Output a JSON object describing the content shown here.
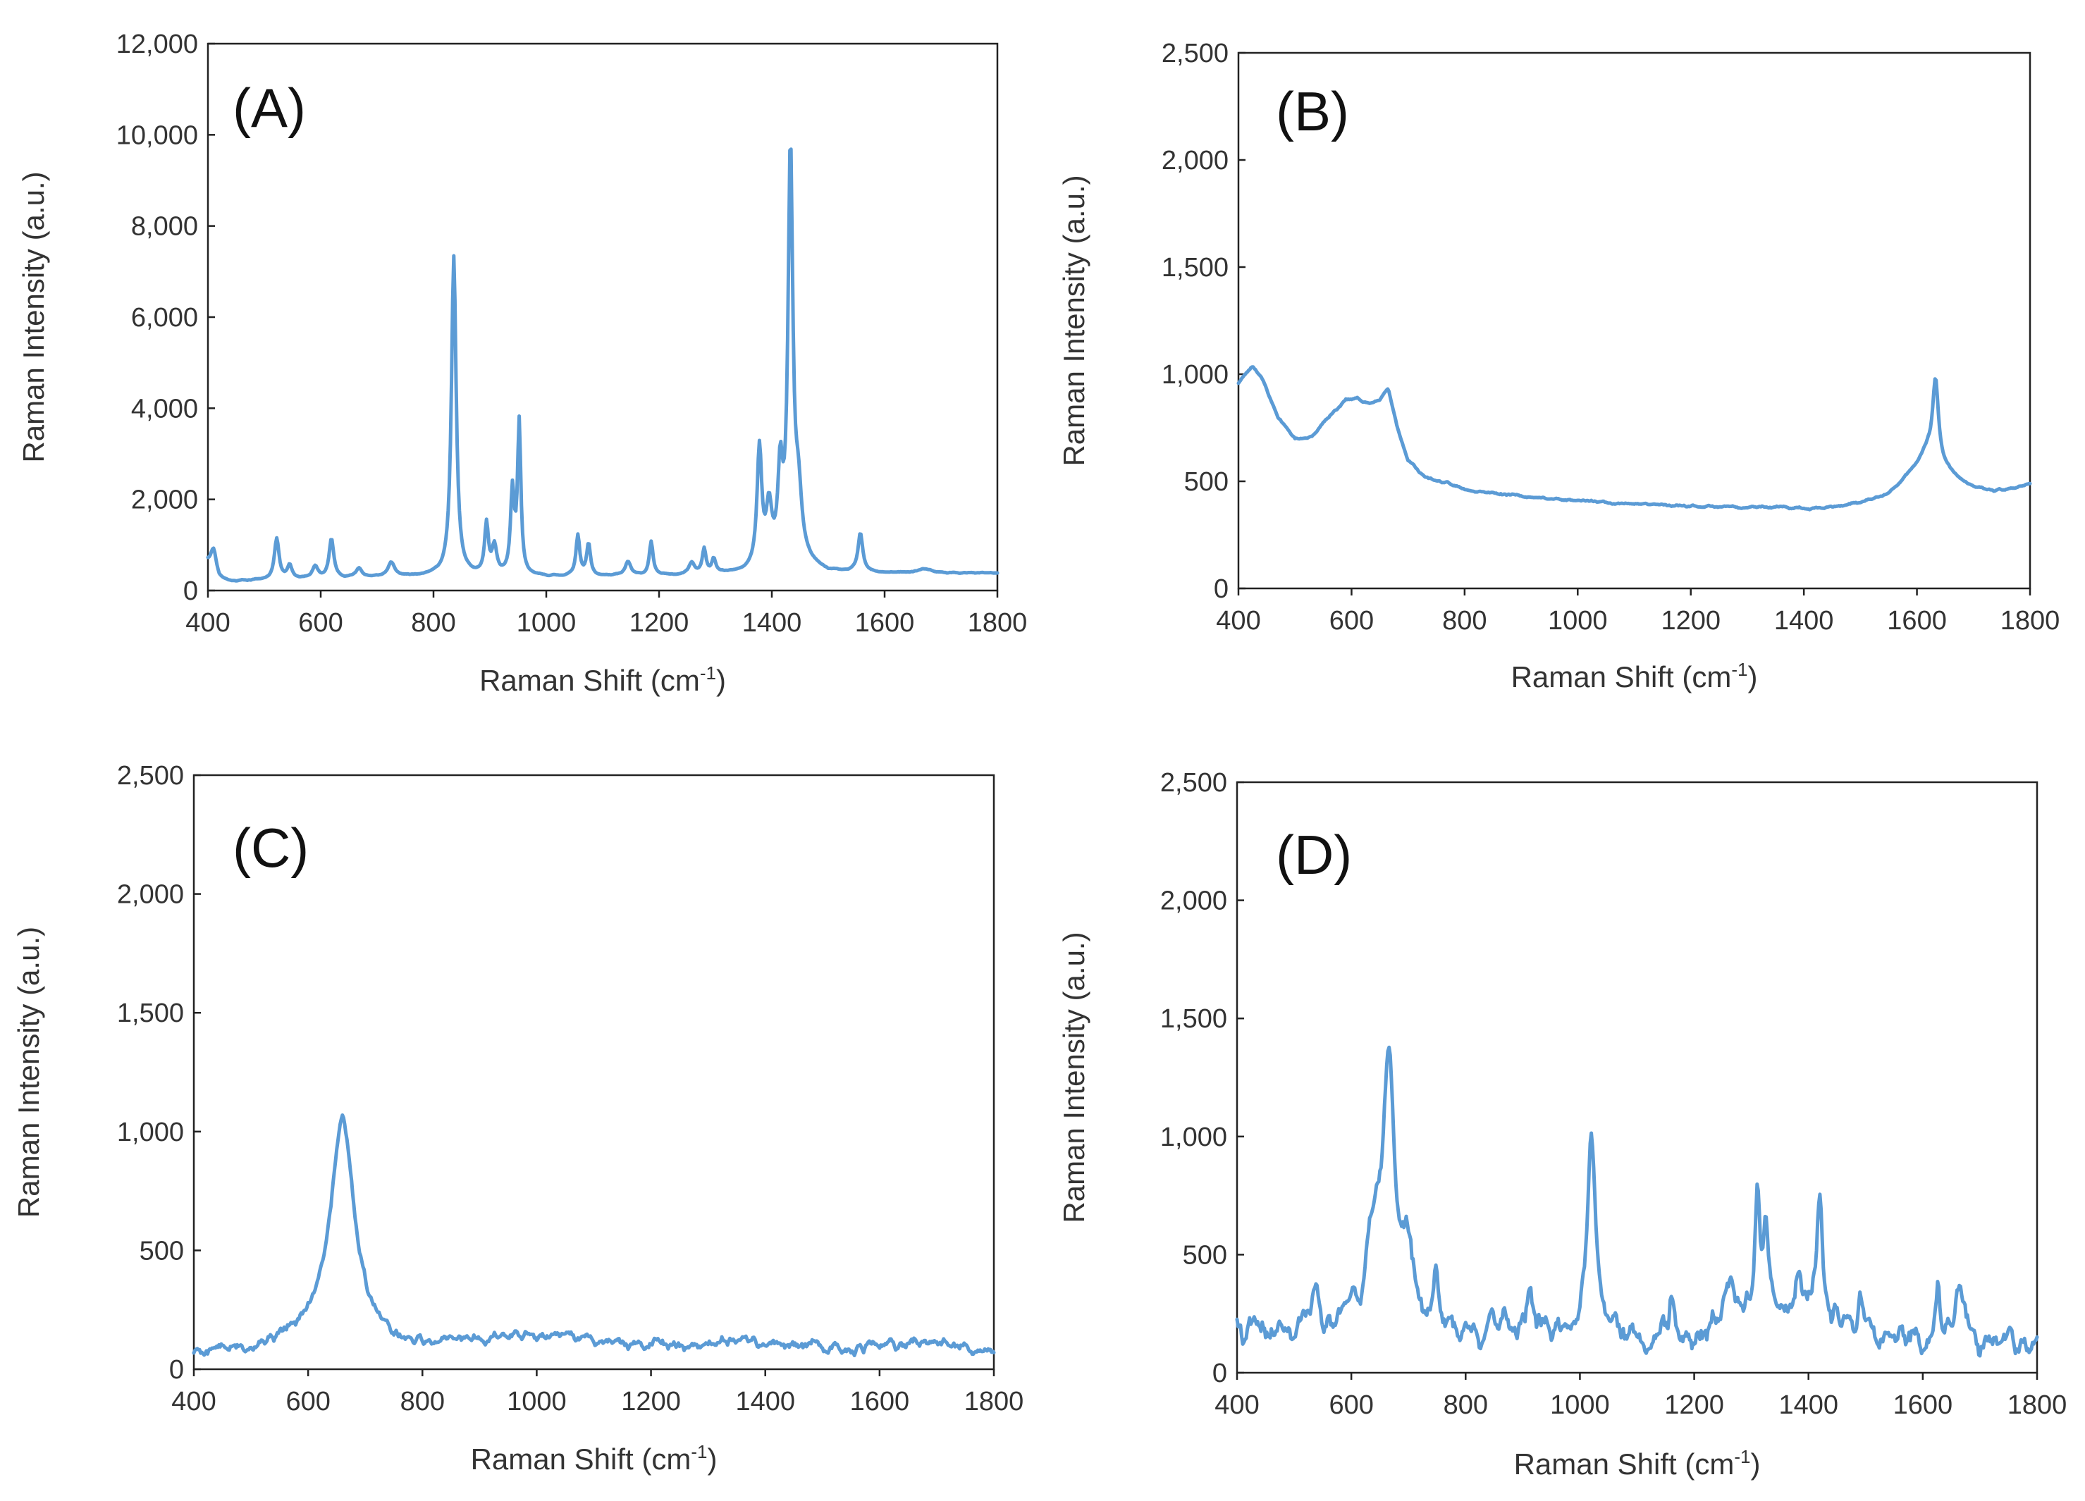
{
  "colors": {
    "series": "#5b9bd5",
    "axis": "#222222",
    "text": "#333333"
  },
  "chart_data": [
    {
      "type": "line",
      "panel_label": "(A)",
      "xlabel": "Raman Shift (cm",
      "xlabel_sup": "-1",
      "xlabel_end": ")",
      "ylabel": "Raman Intensity (a.u.)",
      "xlim": [
        400,
        1800
      ],
      "ylim": [
        0,
        12000
      ],
      "xticks": [
        400,
        600,
        800,
        1000,
        1200,
        1400,
        1600,
        1800
      ],
      "xtick_labels": [
        "400",
        "600",
        "800",
        "1000",
        "1200",
        "1400",
        "1600",
        "1800"
      ],
      "yticks": [
        0,
        2000,
        4000,
        6000,
        8000,
        10000,
        12000
      ],
      "ytick_labels": [
        "0",
        "2,000",
        "4,000",
        "6,000",
        "8,000",
        "10,000",
        "12,000"
      ],
      "baseline": [
        [
          400,
          600
        ],
        [
          420,
          250
        ],
        [
          440,
          200
        ],
        [
          500,
          230
        ],
        [
          600,
          260
        ],
        [
          700,
          290
        ],
        [
          800,
          330
        ],
        [
          860,
          320
        ],
        [
          1000,
          300
        ],
        [
          1200,
          320
        ],
        [
          1350,
          380
        ],
        [
          1450,
          600
        ],
        [
          1500,
          400
        ],
        [
          1600,
          380
        ],
        [
          1800,
          380
        ]
      ],
      "peaks": [
        [
          410,
          500,
          6
        ],
        [
          522,
          900,
          5
        ],
        [
          545,
          300,
          5
        ],
        [
          590,
          250,
          6
        ],
        [
          619,
          850,
          5
        ],
        [
          668,
          200,
          6
        ],
        [
          725,
          300,
          7
        ],
        [
          836,
          7000,
          5
        ],
        [
          894,
          1100,
          4
        ],
        [
          908,
          600,
          5
        ],
        [
          940,
          1800,
          4
        ],
        [
          952,
          3300,
          3.5
        ],
        [
          1056,
          900,
          4
        ],
        [
          1075,
          700,
          4
        ],
        [
          1145,
          300,
          6
        ],
        [
          1186,
          750,
          4
        ],
        [
          1258,
          250,
          6
        ],
        [
          1280,
          550,
          4
        ],
        [
          1297,
          300,
          4
        ],
        [
          1378,
          2600,
          5
        ],
        [
          1395,
          1200,
          6
        ],
        [
          1415,
          1900,
          5
        ],
        [
          1433,
          9000,
          5
        ],
        [
          1447,
          1300,
          7
        ],
        [
          1557,
          850,
          5
        ],
        [
          1670,
          80,
          15
        ]
      ],
      "noise": 15,
      "seed": 11
    },
    {
      "type": "line",
      "panel_label": "(B)",
      "xlabel": "Raman Shift (cm",
      "xlabel_sup": "-1",
      "xlabel_end": ")",
      "ylabel": "Raman Intensity (a.u.)",
      "xlim": [
        400,
        1800
      ],
      "ylim": [
        0,
        2500
      ],
      "xticks": [
        400,
        600,
        800,
        1000,
        1200,
        1400,
        1600,
        1800
      ],
      "xtick_labels": [
        "400",
        "600",
        "800",
        "1000",
        "1200",
        "1400",
        "1600",
        "1800"
      ],
      "yticks": [
        0,
        500,
        1000,
        1500,
        2000,
        2500
      ],
      "ytick_labels": [
        "0",
        "500",
        "1,000",
        "1,500",
        "2,000",
        "2,500"
      ],
      "baseline": [
        [
          400,
          960
        ],
        [
          425,
          1040
        ],
        [
          440,
          990
        ],
        [
          470,
          800
        ],
        [
          500,
          700
        ],
        [
          530,
          710
        ],
        [
          560,
          800
        ],
        [
          590,
          880
        ],
        [
          610,
          890
        ],
        [
          630,
          860
        ],
        [
          650,
          880
        ],
        [
          665,
          930
        ],
        [
          680,
          760
        ],
        [
          700,
          600
        ],
        [
          730,
          520
        ],
        [
          800,
          465
        ],
        [
          900,
          430
        ],
        [
          1000,
          410
        ],
        [
          1100,
          395
        ],
        [
          1200,
          385
        ],
        [
          1300,
          380
        ],
        [
          1400,
          375
        ],
        [
          1450,
          380
        ],
        [
          1500,
          400
        ],
        [
          1550,
          440
        ],
        [
          1580,
          520
        ],
        [
          1600,
          580
        ],
        [
          1620,
          650
        ],
        [
          1660,
          540
        ],
        [
          1700,
          470
        ],
        [
          1750,
          455
        ],
        [
          1800,
          490
        ]
      ],
      "peaks": [
        [
          1633,
          370,
          6
        ]
      ],
      "noise": 7,
      "seed": 23
    },
    {
      "type": "line",
      "panel_label": "(C)",
      "xlabel": "Raman Shift (cm",
      "xlabel_sup": "-1",
      "xlabel_end": ")",
      "ylabel": "Raman Intensity (a.u.)",
      "xlim": [
        400,
        1800
      ],
      "ylim": [
        0,
        2500
      ],
      "xticks": [
        400,
        600,
        800,
        1000,
        1200,
        1400,
        1600,
        1800
      ],
      "xtick_labels": [
        "400",
        "600",
        "800",
        "1000",
        "1200",
        "1400",
        "1600",
        "1800"
      ],
      "yticks": [
        0,
        500,
        1000,
        1500,
        2000,
        2500
      ],
      "ytick_labels": [
        "0",
        "500",
        "1,000",
        "1,500",
        "2,000",
        "2,500"
      ],
      "baseline": [
        [
          400,
          70
        ],
        [
          500,
          85
        ],
        [
          580,
          130
        ],
        [
          620,
          180
        ],
        [
          700,
          150
        ],
        [
          760,
          90
        ],
        [
          850,
          110
        ],
        [
          950,
          140
        ],
        [
          1050,
          130
        ],
        [
          1150,
          110
        ],
        [
          1250,
          100
        ],
        [
          1350,
          110
        ],
        [
          1450,
          100
        ],
        [
          1550,
          90
        ],
        [
          1650,
          110
        ],
        [
          1700,
          120
        ],
        [
          1800,
          70
        ]
      ],
      "peaks": [
        [
          660,
          900,
          24
        ]
      ],
      "noise": 30,
      "seed": 5
    },
    {
      "type": "line",
      "panel_label": "(D)",
      "xlabel": "Raman Shift (cm",
      "xlabel_sup": "-1",
      "xlabel_end": ")",
      "ylabel": "Raman Intensity (a.u.)",
      "xlim": [
        400,
        1800
      ],
      "ylim": [
        0,
        2500
      ],
      "xticks": [
        400,
        600,
        800,
        1000,
        1200,
        1400,
        1600,
        1800
      ],
      "xtick_labels": [
        "400",
        "600",
        "800",
        "1000",
        "1200",
        "1400",
        "1600",
        "1800"
      ],
      "yticks": [
        0,
        500,
        1000,
        1500,
        2000,
        2500
      ],
      "ytick_labels": [
        "0",
        "500",
        "1,000",
        "1,500",
        "2,000",
        "2,500"
      ],
      "baseline": [
        [
          400,
          170
        ],
        [
          500,
          160
        ],
        [
          600,
          230
        ],
        [
          700,
          200
        ],
        [
          800,
          160
        ],
        [
          900,
          190
        ],
        [
          1000,
          170
        ],
        [
          1100,
          150
        ],
        [
          1200,
          140
        ],
        [
          1250,
          220
        ],
        [
          1300,
          250
        ],
        [
          1400,
          230
        ],
        [
          1500,
          180
        ],
        [
          1600,
          120
        ],
        [
          1700,
          140
        ],
        [
          1800,
          90
        ]
      ],
      "peaks": [
        [
          535,
          170,
          6
        ],
        [
          640,
          250,
          15
        ],
        [
          665,
          1050,
          14
        ],
        [
          700,
          250,
          10
        ],
        [
          748,
          240,
          5
        ],
        [
          866,
          100,
          5
        ],
        [
          910,
          140,
          5
        ],
        [
          1020,
          780,
          9
        ],
        [
          1160,
          150,
          5
        ],
        [
          1262,
          200,
          8
        ],
        [
          1311,
          500,
          5
        ],
        [
          1325,
          330,
          5
        ],
        [
          1382,
          180,
          7
        ],
        [
          1420,
          510,
          6
        ],
        [
          1490,
          100,
          6
        ],
        [
          1627,
          200,
          5
        ],
        [
          1665,
          180,
          10
        ]
      ],
      "noise": 75,
      "seed": 41
    }
  ]
}
